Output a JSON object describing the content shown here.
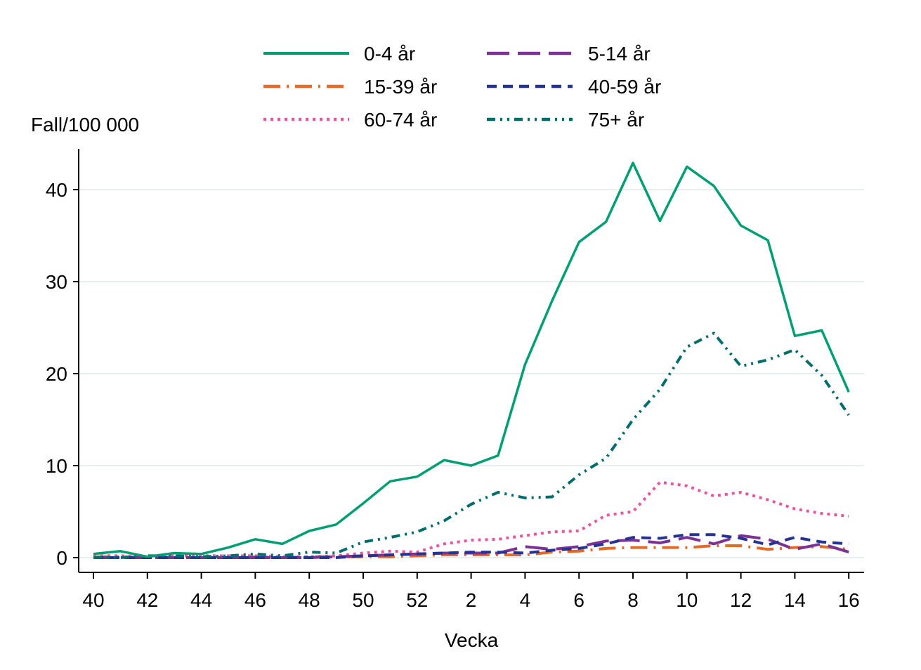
{
  "chart_data": {
    "type": "line",
    "title": "",
    "ylabel": "Fall/100 000",
    "xlabel": "Vecka",
    "ylim": [
      0,
      45
    ],
    "yticks": [
      0,
      10,
      20,
      30,
      40
    ],
    "grid": "horizontal",
    "legend_position": "top",
    "x": [
      40,
      41,
      42,
      43,
      44,
      45,
      46,
      47,
      48,
      49,
      50,
      51,
      52,
      1,
      2,
      3,
      4,
      5,
      6,
      7,
      8,
      9,
      10,
      11,
      12,
      13,
      14,
      15,
      16
    ],
    "xtick_labels": [
      "40",
      "42",
      "44",
      "46",
      "48",
      "50",
      "52",
      "2",
      "4",
      "6",
      "8",
      "10",
      "12",
      "14",
      "16"
    ],
    "series": [
      {
        "name": "0-4 år",
        "color": "#009e73",
        "dash": "solid",
        "values": [
          0.4,
          0.7,
          0.1,
          0.5,
          0.4,
          1.1,
          2.0,
          1.5,
          2.9,
          3.6,
          5.9,
          8.3,
          8.8,
          10.6,
          10.0,
          11.1,
          21.0,
          27.9,
          34.3,
          36.5,
          42.9,
          36.6,
          42.5,
          40.4,
          36.1,
          34.5,
          24.1,
          24.7,
          18.0
        ]
      },
      {
        "name": "5-14 år",
        "color": "#7b3294",
        "dash": "long",
        "values": [
          0.0,
          0.0,
          0.0,
          0.0,
          0.0,
          0.0,
          0.0,
          0.0,
          0.0,
          0.1,
          0.2,
          0.3,
          0.4,
          0.5,
          0.5,
          0.5,
          1.2,
          0.9,
          1.2,
          1.8,
          1.9,
          1.6,
          2.2,
          1.5,
          2.4,
          2.0,
          0.9,
          1.5,
          0.6
        ]
      },
      {
        "name": "15-39 år",
        "color": "#e66a25",
        "dash": "dashdot",
        "values": [
          0.1,
          0.1,
          0.0,
          0.0,
          0.0,
          0.0,
          0.1,
          0.0,
          0.1,
          0.1,
          0.1,
          0.1,
          0.2,
          0.3,
          0.3,
          0.3,
          0.3,
          0.6,
          0.7,
          1.0,
          1.1,
          1.1,
          1.1,
          1.3,
          1.3,
          0.9,
          1.1,
          1.2,
          0.9
        ]
      },
      {
        "name": "40-59 år",
        "color": "#253494",
        "dash": "dash",
        "values": [
          0.0,
          0.0,
          0.0,
          0.0,
          0.0,
          0.0,
          0.0,
          0.0,
          0.0,
          0.0,
          0.2,
          0.3,
          0.4,
          0.5,
          0.6,
          0.6,
          0.5,
          0.8,
          1.0,
          1.5,
          2.2,
          2.1,
          2.5,
          2.5,
          2.1,
          1.4,
          2.2,
          1.7,
          1.5
        ]
      },
      {
        "name": "60-74 år",
        "color": "#e7569f",
        "dash": "dot",
        "values": [
          0.2,
          0.2,
          0.1,
          0.2,
          0.2,
          0.2,
          0.2,
          0.1,
          0.1,
          0.2,
          0.5,
          0.7,
          0.6,
          1.5,
          1.9,
          2.0,
          2.4,
          2.8,
          2.9,
          4.6,
          5.0,
          8.2,
          7.8,
          6.7,
          7.1,
          6.3,
          5.3,
          4.8,
          4.5
        ]
      },
      {
        "name": "75+ år",
        "color": "#006d6a",
        "dash": "dashdotdot",
        "values": [
          0.0,
          0.0,
          0.2,
          0.2,
          0.1,
          0.2,
          0.4,
          0.2,
          0.6,
          0.5,
          1.7,
          2.2,
          2.8,
          4.0,
          5.8,
          7.1,
          6.5,
          6.6,
          9.0,
          10.8,
          15.0,
          18.3,
          22.9,
          24.4,
          20.8,
          21.5,
          22.6,
          19.8,
          15.5
        ]
      }
    ]
  }
}
